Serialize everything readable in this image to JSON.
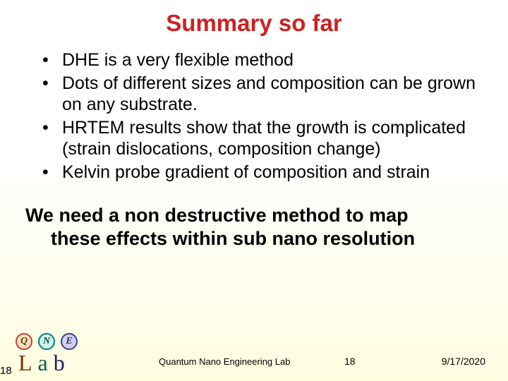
{
  "title": "Summary so far",
  "bullets": [
    "DHE is a very flexible method",
    "Dots of different sizes and composition can be grown on any substrate.",
    "HRTEM results show that the growth is complicated (strain dislocations, composition change)",
    "Kelvin probe gradient of composition and strain"
  ],
  "conclusion_line1": "We need a non destructive method to map",
  "conclusion_line2": "these effects within sub nano resolution",
  "logo": {
    "q": "Q",
    "n": "N",
    "e": "E",
    "l": "L",
    "a": "a",
    "b": "b"
  },
  "footer": {
    "page_left": "18",
    "lab_name": "Quantum Nano Engineering Lab",
    "page_right": "18",
    "date": "9/17/2020"
  },
  "colors": {
    "title": "#d02020",
    "text": "#000000",
    "bg_top": "#ffffff",
    "bg_bottom": "#fffde0"
  }
}
